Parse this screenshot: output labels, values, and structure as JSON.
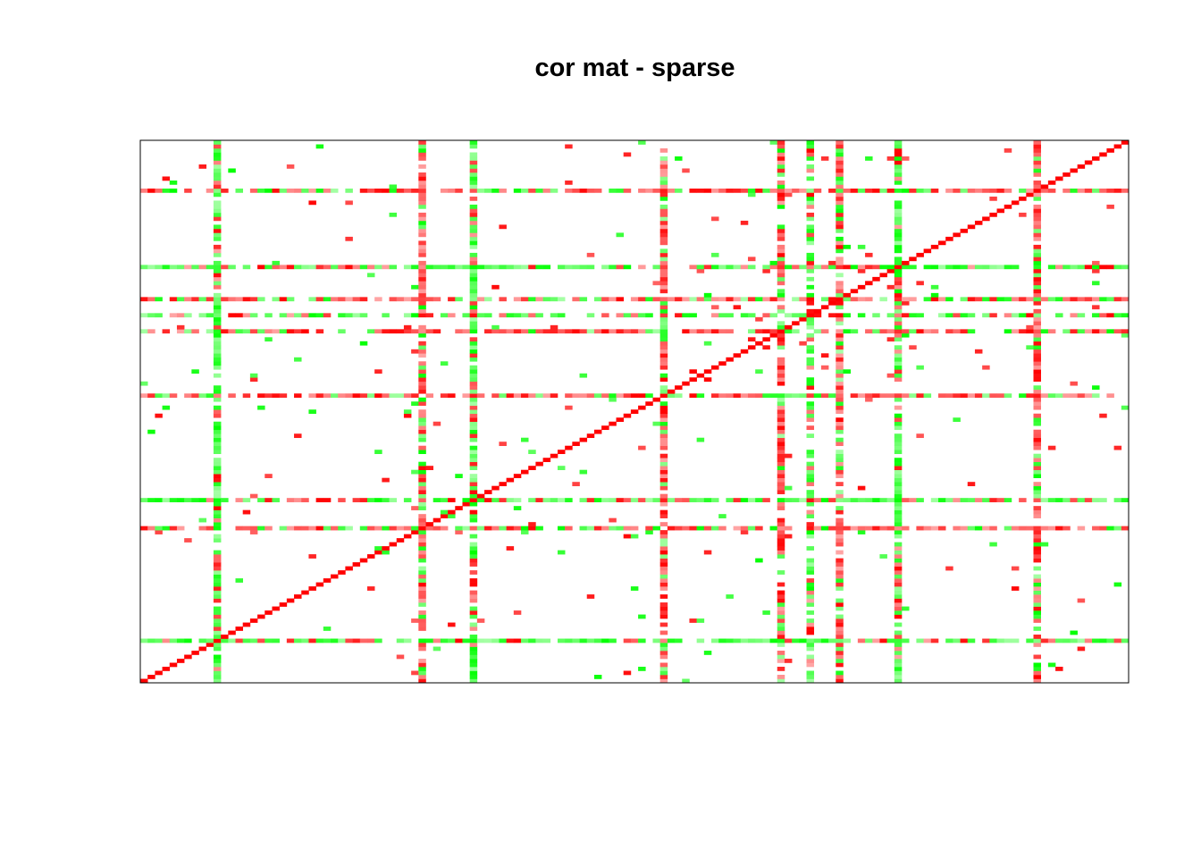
{
  "chart_data": {
    "type": "heatmap",
    "title": "cor mat - sparse",
    "xlabel": "",
    "ylabel": "",
    "n": 135,
    "grid": false,
    "legend": "none",
    "value_range": [
      -1,
      1
    ],
    "colors": {
      "positive": "#ff0000",
      "negative": "#00ff00",
      "zero": "#ffffff",
      "border": "#000000"
    },
    "dense_variables": [
      {
        "index": 10,
        "sign": "negative",
        "density": 0.9
      },
      {
        "index": 38,
        "sign": "positive",
        "density": 0.85
      },
      {
        "index": 45,
        "sign": "negative",
        "density": 0.9
      },
      {
        "index": 71,
        "sign": "positive",
        "density": 0.85
      },
      {
        "index": 87,
        "sign": "positive",
        "density": 0.8
      },
      {
        "index": 91,
        "sign": "negative",
        "density": 0.8
      },
      {
        "index": 95,
        "sign": "positive",
        "density": 0.8
      },
      {
        "index": 103,
        "sign": "negative",
        "density": 0.9
      },
      {
        "index": 122,
        "sign": "positive",
        "density": 0.85
      }
    ],
    "sparse_fraction": 0.012,
    "seed": 20240611
  }
}
